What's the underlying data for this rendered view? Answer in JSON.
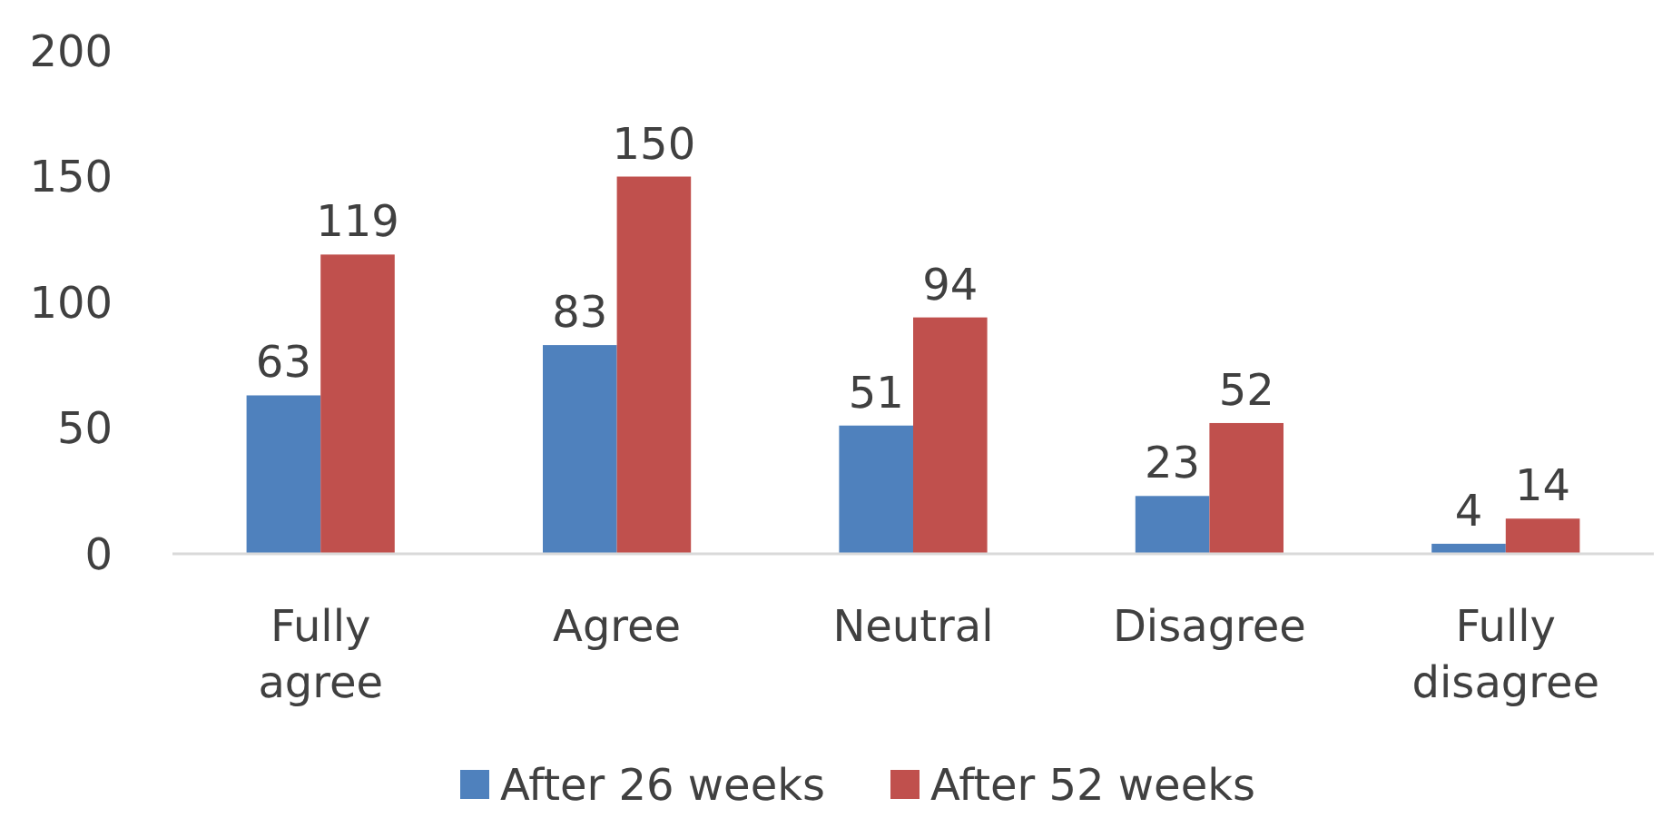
{
  "chart_data": {
    "type": "bar",
    "categories": [
      "Fully agree",
      "Agree",
      "Neutral",
      "Disagree",
      "Fully disagree"
    ],
    "series": [
      {
        "name": "After 26 weeks",
        "color": "#4f81bd",
        "values": [
          63,
          83,
          51,
          23,
          4
        ]
      },
      {
        "name": "After 52 weeks",
        "color": "#c0504d",
        "values": [
          119,
          150,
          94,
          52,
          14
        ]
      }
    ],
    "ylim": [
      0,
      200
    ],
    "yticks": [
      0,
      50,
      100,
      150,
      200
    ],
    "grid": false,
    "legend": "bottom",
    "data_labels": true
  }
}
